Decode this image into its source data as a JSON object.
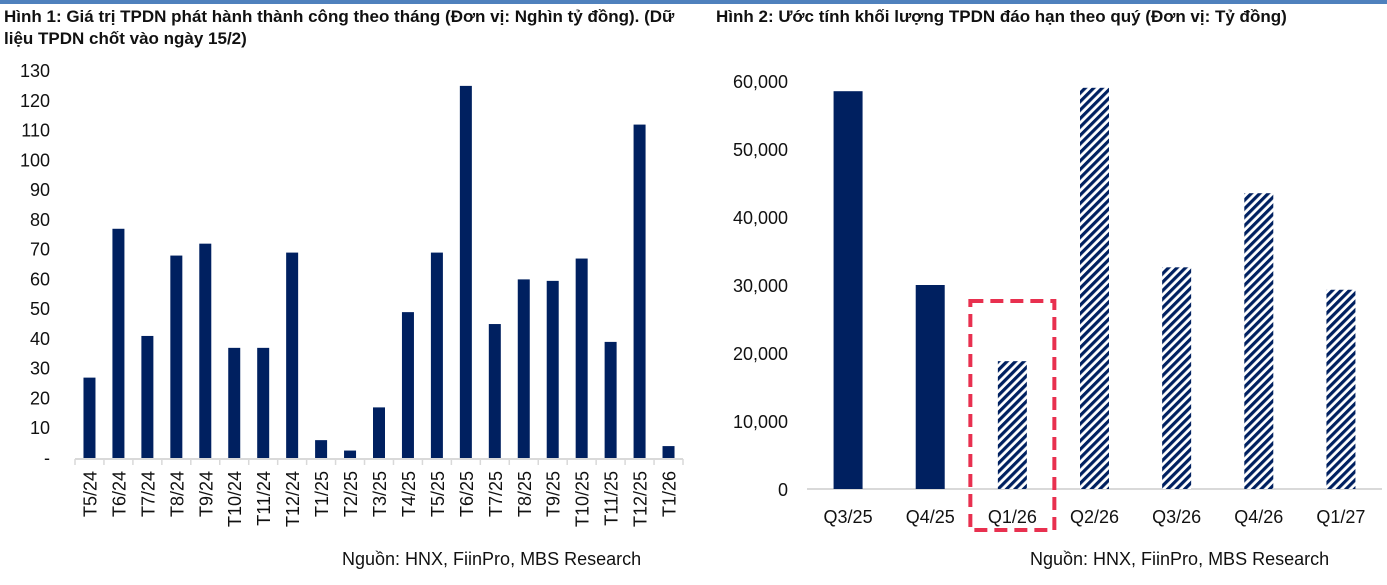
{
  "chart_data": [
    {
      "type": "bar",
      "title": "Hình 1: Giá trị TPDN phát hành thành công theo tháng (Đơn vị: Nghìn tỷ đồng). (Dữ liệu TPDN chốt vào ngày 15/2)",
      "xlabel": "",
      "ylabel": "",
      "ylim": [
        0,
        130
      ],
      "yticks": [
        0,
        10,
        20,
        30,
        40,
        50,
        60,
        70,
        80,
        90,
        100,
        110,
        120,
        130
      ],
      "ytick_labels": [
        "-",
        "10",
        "20",
        "30",
        "40",
        "50",
        "60",
        "70",
        "80",
        "90",
        "100",
        "110",
        "120",
        "130"
      ],
      "categories": [
        "T5/24",
        "T6/24",
        "T7/24",
        "T8/24",
        "T9/24",
        "T10/24",
        "T11/24",
        "T12/24",
        "T1/25",
        "T2/25",
        "T3/25",
        "T4/25",
        "T5/25",
        "T6/25",
        "T7/25",
        "T8/25",
        "T9/25",
        "T10/25",
        "T11/25",
        "T12/25",
        "T1/26"
      ],
      "values": [
        27,
        77,
        41,
        68,
        72,
        37,
        37,
        69,
        6,
        2.5,
        17,
        49,
        69,
        125,
        45,
        60,
        59.5,
        67,
        39,
        112,
        4
      ],
      "grid": false,
      "source": "Nguồn: HNX, FiinPro, MBS Research",
      "colors": {
        "bar": "#002060",
        "axis": "#d9d9d9"
      }
    },
    {
      "type": "bar",
      "title": "Hình 2: Ước tính khối lượng TPDN đáo hạn theo quý (Đơn vị: Tỷ đồng)",
      "xlabel": "",
      "ylabel": "",
      "ylim": [
        0,
        60000
      ],
      "yticks": [
        0,
        10000,
        20000,
        30000,
        40000,
        50000,
        60000
      ],
      "ytick_labels": [
        "0",
        "10,000",
        "20,000",
        "30,000",
        "40,000",
        "50,000",
        "60,000"
      ],
      "categories": [
        "Q3/25",
        "Q4/25",
        "Q1/26",
        "Q2/26",
        "Q3/26",
        "Q4/26",
        "Q1/27"
      ],
      "values": [
        58500,
        30000,
        18800,
        59000,
        32600,
        43500,
        29300
      ],
      "styles": [
        "solid",
        "solid",
        "hatched",
        "hatched",
        "hatched",
        "hatched",
        "hatched"
      ],
      "highlight": "Q1/26",
      "grid": false,
      "source": "Nguồn: HNX, FiinPro, MBS Research",
      "colors": {
        "bar": "#002060",
        "axis": "#d9d9d9",
        "highlight": "#e8304f"
      }
    }
  ]
}
